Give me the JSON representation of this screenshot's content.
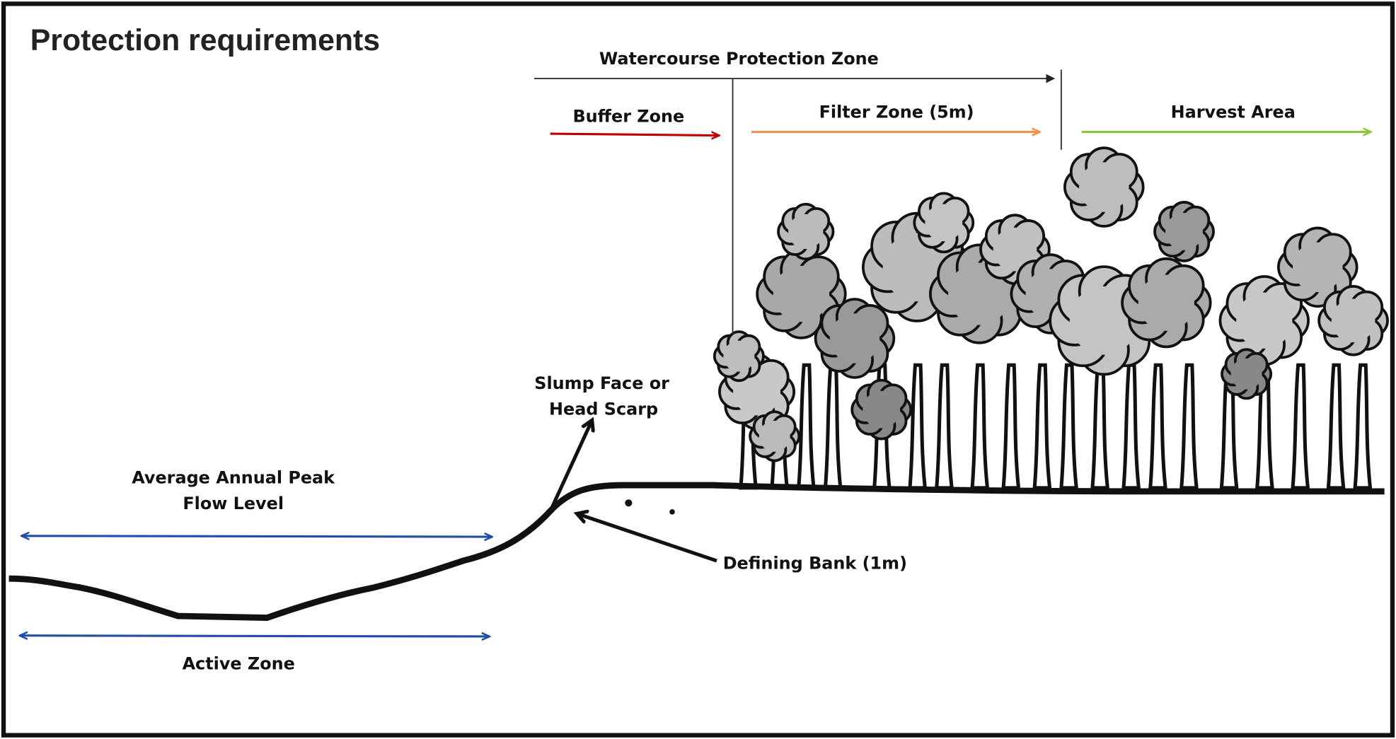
{
  "title": "Protection requirements",
  "zones": {
    "watercourse": "Watercourse Protection Zone",
    "buffer": "Buffer Zone",
    "filter": "Filter Zone (5m)",
    "harvest": "Harvest Area"
  },
  "labels": {
    "slump": [
      "Slump Face or",
      "Head Scarp"
    ],
    "peak_flow": [
      "Average Annual Peak",
      "Flow Level"
    ],
    "defining_bank": "Defining Bank (1m)",
    "active_zone": "Active Zone"
  }
}
